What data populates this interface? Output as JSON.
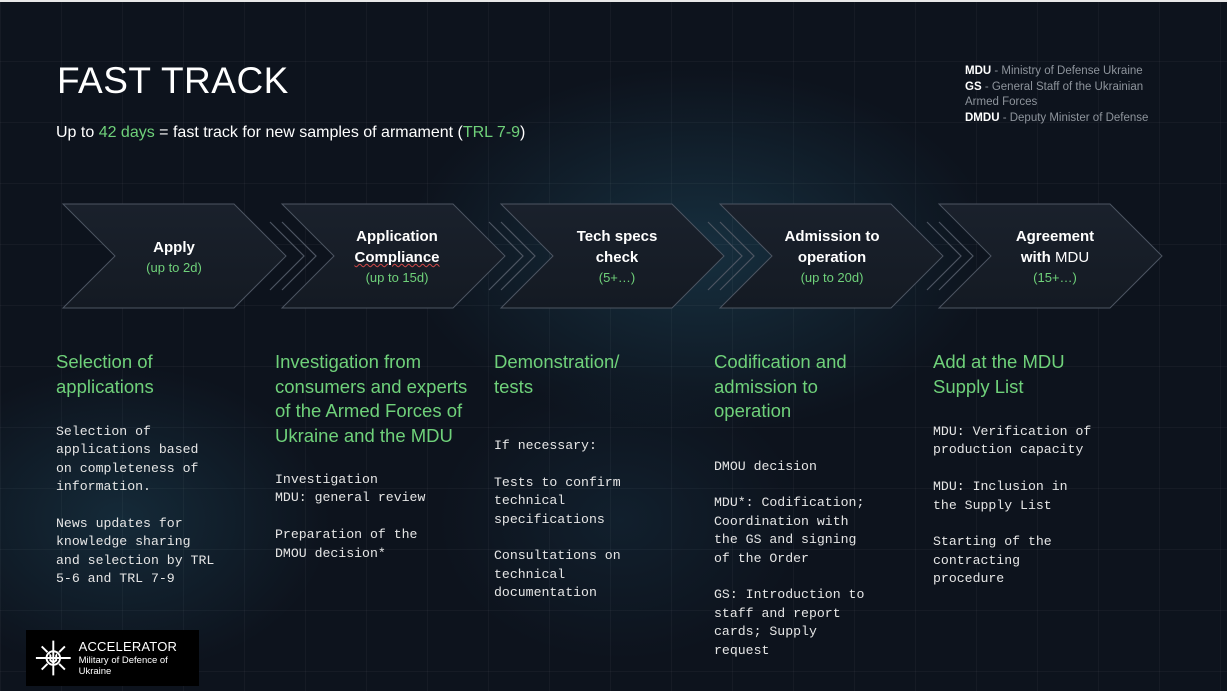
{
  "header": {
    "title": "FAST TRACK",
    "subtitle_prefix": "Up to ",
    "subtitle_days": "42 days",
    "subtitle_middle": " = fast  track for new samples of armament  (",
    "subtitle_trl": "TRL 7-9",
    "subtitle_suffix": ")"
  },
  "legend": [
    {
      "abbr": "MDU",
      "text": " - Ministry of Defense Ukraine"
    },
    {
      "abbr": "GS",
      "text": " - General Staff of the Ukrainian Armed Forces"
    },
    {
      "abbr": "DMDU",
      "text": " - Deputy Minister of Defense"
    }
  ],
  "steps": [
    {
      "line1": "Apply",
      "line2": "",
      "duration": "(up to 2d)"
    },
    {
      "line1": "Application",
      "line2": "Compliance",
      "duration": "(up to 15d)"
    },
    {
      "line1": "Tech specs",
      "line2": "check",
      "duration": "(5+…)"
    },
    {
      "line1": "Admission to",
      "line2": "operation",
      "duration": "(up to 20d)"
    },
    {
      "line1": "Agreement",
      "line2_bold": "with ",
      "line2_normal": "MDU",
      "duration": "(15+…)"
    }
  ],
  "columns": [
    {
      "heading": "Selection of applications",
      "body": "Selection of\napplications based\non completeness of\ninformation.\n\nNews updates for\nknowledge sharing\nand selection by TRL\n5-6 and TRL 7-9"
    },
    {
      "heading": "Investigation from consumers and experts of the Armed Forces of Ukraine and the MDU",
      "body": "Investigation\nMDU: general review\n\nPreparation of the\nDMOU decision*"
    },
    {
      "heading": "Demonstration/ tests",
      "body": "If necessary:\n\nTests to confirm\ntechnical\nspecifications\n\nConsultations on\ntechnical\ndocumentation"
    },
    {
      "heading": "Codification and admission to operation",
      "body": "DMOU decision\n\nMDU*: Codification;\nCoordination with\nthe GS and signing\nof the Order\n\nGS: Introduction to\nstaff and report\ncards; Supply\nrequest"
    },
    {
      "heading": "Add at the MDU Supply List",
      "body": "MDU: Verification of\nproduction capacity\n\nMDU: Inclusion in\nthe Supply List\n\nStarting of the\ncontracting\nprocedure"
    }
  ],
  "logo": {
    "name": "ACCELERATOR",
    "org": "Military of Defence of Ukraine"
  }
}
